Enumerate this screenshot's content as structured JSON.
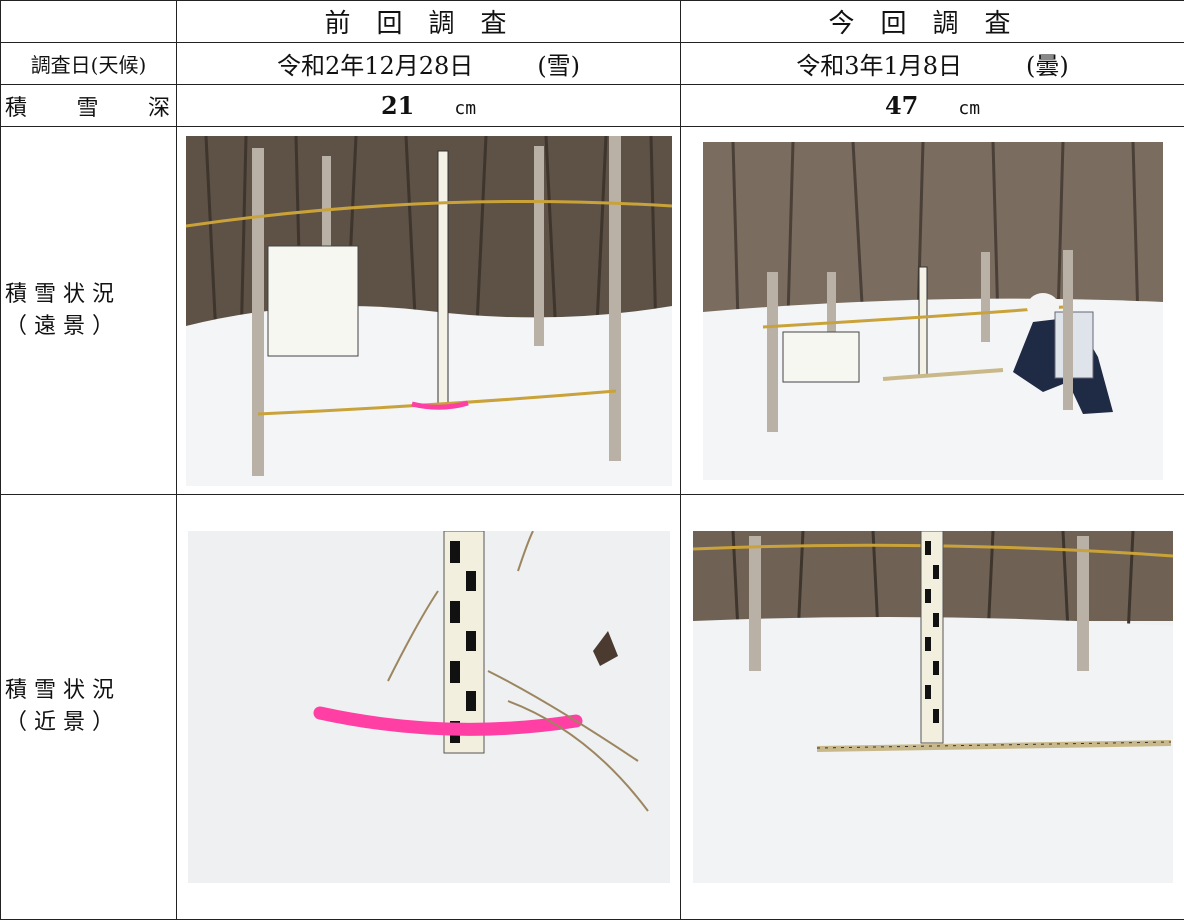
{
  "headers": {
    "previous": "前回調査",
    "current": "今回調査"
  },
  "rows": {
    "survey_date_label": "調査日(天候)",
    "depth_label": [
      "積",
      "雪",
      "深"
    ],
    "far_label_line1": "積雪状況",
    "far_label_line2": "（遠景）",
    "near_label_line1": "積雪状況",
    "near_label_line2": "（近景）"
  },
  "previous": {
    "date": "令和2年12月28日",
    "weather": "(雪)",
    "depth": "21",
    "unit": "cm"
  },
  "current": {
    "date": "令和3年1月8日",
    "weather": "(曇)",
    "depth": "47",
    "unit": "cm"
  },
  "colors": {
    "snow": "#eef0f3",
    "trees": "#6b5a4a",
    "marker": "#ff3fa4",
    "rope": "#c9a23a"
  }
}
